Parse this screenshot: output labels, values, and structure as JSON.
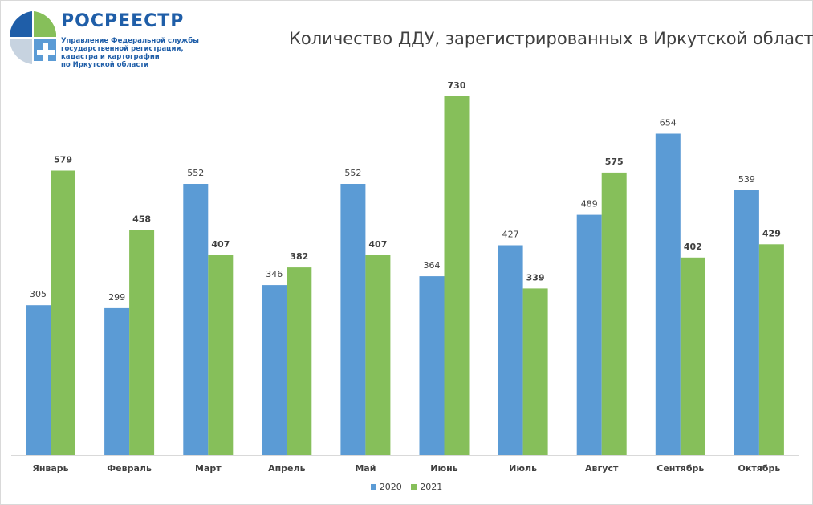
{
  "logo": {
    "name": "РОСРЕЕСТР",
    "subtitle": [
      "Управление Федеральной службы",
      "государственной регистрации,",
      "кадастра и картографии",
      "по Иркутской области"
    ]
  },
  "chart_data": {
    "type": "bar",
    "title": "Количество ДДУ, зарегистрированных в Иркутской области",
    "categories": [
      "Январь",
      "Февраль",
      "Март",
      "Апрель",
      "Май",
      "Июнь",
      "Июль",
      "Август",
      "Сентябрь",
      "Октябрь"
    ],
    "series": [
      {
        "name": "2020",
        "color": "#5b9bd5",
        "values": [
          305,
          299,
          552,
          346,
          552,
          364,
          427,
          489,
          654,
          539
        ]
      },
      {
        "name": "2021",
        "color": "#86bf5a",
        "values": [
          579,
          458,
          407,
          382,
          407,
          730,
          339,
          575,
          402,
          429
        ]
      }
    ],
    "ylim": [
      0,
      780
    ],
    "grid": false,
    "legend": "bottom-center",
    "xlabel": "",
    "ylabel": ""
  }
}
